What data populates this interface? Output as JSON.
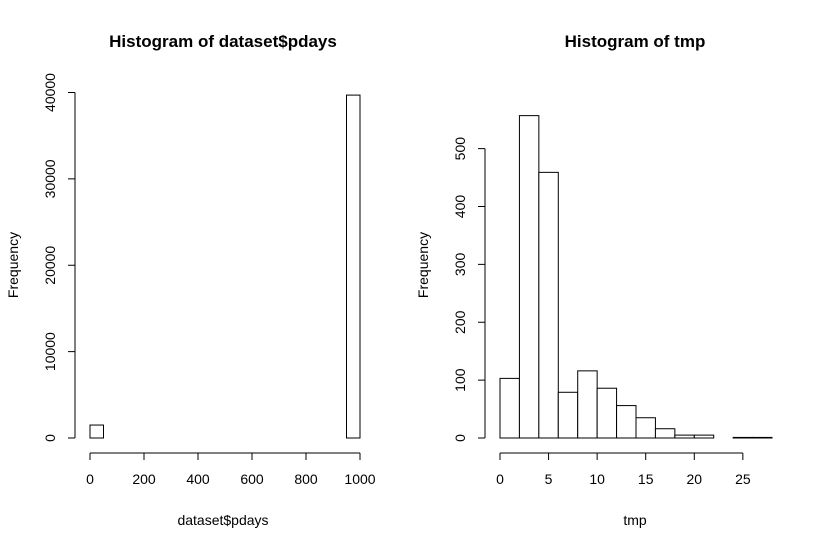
{
  "chart_data": [
    {
      "type": "histogram",
      "title": "Histogram of dataset$pdays",
      "xlabel": "dataset$pdays",
      "ylabel": "Frequency",
      "xlim": [
        0,
        1000
      ],
      "ylim": [
        0,
        40000
      ],
      "x_ticks": [
        0,
        200,
        400,
        600,
        800,
        1000
      ],
      "y_ticks": [
        0,
        10000,
        20000,
        30000,
        40000
      ],
      "bins": [
        {
          "x0": 0,
          "x1": 50,
          "count": 1500
        },
        {
          "x0": 50,
          "x1": 100,
          "count": 0
        },
        {
          "x0": 100,
          "x1": 150,
          "count": 0
        },
        {
          "x0": 150,
          "x1": 200,
          "count": 0
        },
        {
          "x0": 200,
          "x1": 250,
          "count": 0
        },
        {
          "x0": 250,
          "x1": 300,
          "count": 0
        },
        {
          "x0": 300,
          "x1": 350,
          "count": 0
        },
        {
          "x0": 350,
          "x1": 400,
          "count": 0
        },
        {
          "x0": 400,
          "x1": 450,
          "count": 0
        },
        {
          "x0": 450,
          "x1": 500,
          "count": 0
        },
        {
          "x0": 500,
          "x1": 550,
          "count": 0
        },
        {
          "x0": 550,
          "x1": 600,
          "count": 0
        },
        {
          "x0": 600,
          "x1": 650,
          "count": 0
        },
        {
          "x0": 650,
          "x1": 700,
          "count": 0
        },
        {
          "x0": 700,
          "x1": 750,
          "count": 0
        },
        {
          "x0": 750,
          "x1": 800,
          "count": 0
        },
        {
          "x0": 800,
          "x1": 850,
          "count": 0
        },
        {
          "x0": 850,
          "x1": 900,
          "count": 0
        },
        {
          "x0": 900,
          "x1": 950,
          "count": 0
        },
        {
          "x0": 950,
          "x1": 1000,
          "count": 39700
        }
      ]
    },
    {
      "type": "histogram",
      "title": "Histogram of tmp",
      "xlabel": "tmp",
      "ylabel": "Frequency",
      "xlim": [
        0,
        28
      ],
      "ylim": [
        0,
        560
      ],
      "x_ticks": [
        0,
        5,
        10,
        15,
        20,
        25
      ],
      "y_ticks": [
        0,
        100,
        200,
        300,
        400,
        500
      ],
      "bins": [
        {
          "x0": 0,
          "x1": 2,
          "count": 103
        },
        {
          "x0": 2,
          "x1": 4,
          "count": 557
        },
        {
          "x0": 4,
          "x1": 6,
          "count": 459
        },
        {
          "x0": 6,
          "x1": 8,
          "count": 79
        },
        {
          "x0": 8,
          "x1": 10,
          "count": 116
        },
        {
          "x0": 10,
          "x1": 12,
          "count": 86
        },
        {
          "x0": 12,
          "x1": 14,
          "count": 56
        },
        {
          "x0": 14,
          "x1": 16,
          "count": 35
        },
        {
          "x0": 16,
          "x1": 18,
          "count": 16
        },
        {
          "x0": 18,
          "x1": 20,
          "count": 5
        },
        {
          "x0": 20,
          "x1": 22,
          "count": 5
        },
        {
          "x0": 22,
          "x1": 24,
          "count": 0
        },
        {
          "x0": 24,
          "x1": 26,
          "count": 1
        },
        {
          "x0": 26,
          "x1": 28,
          "count": 1
        }
      ]
    }
  ]
}
